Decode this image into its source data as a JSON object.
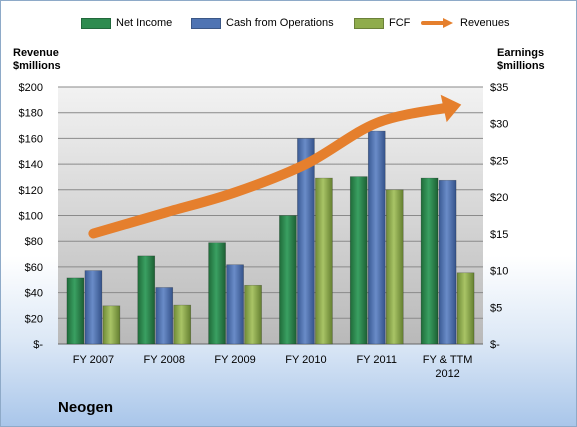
{
  "company": "Neogen",
  "legend_colors": {
    "Net Income": "#2e8b4f",
    "Cash from Operations": "#4f74b3",
    "FCF": "#8fac4c",
    "Revenues": "#e57f2d"
  },
  "chart_data": {
    "type": "bar",
    "categories": [
      "FY 2007",
      "FY 2008",
      "FY 2009",
      "FY 2010",
      "FY 2011",
      "FY & TTM 2012"
    ],
    "series": [
      {
        "name": "Net Income",
        "axis": "right",
        "values": [
          9.0,
          12.0,
          13.8,
          17.5,
          22.8,
          22.6
        ]
      },
      {
        "name": "Cash from Operations",
        "axis": "right",
        "values": [
          10.0,
          7.7,
          10.8,
          28.0,
          29.0,
          22.3
        ]
      },
      {
        "name": "FCF",
        "axis": "right",
        "values": [
          5.2,
          5.3,
          8.0,
          22.6,
          21.0,
          9.7
        ]
      },
      {
        "name": "Revenues",
        "type": "line",
        "axis": "left",
        "values": [
          86,
          102,
          118,
          140,
          172,
          184
        ]
      }
    ],
    "ylabel_left": "Revenue $millions",
    "ylabel_right": "Earnings $millions",
    "ylim_left": [
      0,
      200
    ],
    "ylim_right": [
      0,
      35
    ],
    "left_ticks": [
      "$-",
      "$20",
      "$40",
      "$60",
      "$80",
      "$100",
      "$120",
      "$140",
      "$160",
      "$180",
      "$200"
    ],
    "right_ticks": [
      "$-",
      "$5",
      "$10",
      "$15",
      "$20",
      "$25",
      "$30",
      "$35"
    ],
    "grid": true,
    "legend_position": "top"
  }
}
